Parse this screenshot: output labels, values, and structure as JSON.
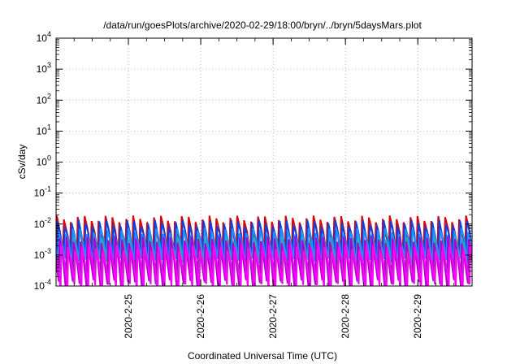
{
  "chart_data": {
    "type": "line",
    "title": "/data/run/goesPlots/archive/2020-02-29/18:00/bryn/../bryn/5daysMars.plot",
    "xlabel": "Coordinated Universal Time (UTC)",
    "ylabel": "cSv/day",
    "yscale": "log",
    "ylim": [
      0.0001,
      10000
    ],
    "y_ticks": [
      {
        "value": 0.0001,
        "base": "10",
        "exp": "-4"
      },
      {
        "value": 0.001,
        "base": "10",
        "exp": "-3"
      },
      {
        "value": 0.01,
        "base": "10",
        "exp": "-2"
      },
      {
        "value": 0.1,
        "base": "10",
        "exp": "-1"
      },
      {
        "value": 1,
        "base": "10",
        "exp": "0"
      },
      {
        "value": 10,
        "base": "10",
        "exp": "1"
      },
      {
        "value": 100,
        "base": "10",
        "exp": "2"
      },
      {
        "value": 1000,
        "base": "10",
        "exp": "3"
      },
      {
        "value": 10000,
        "base": "10",
        "exp": "4"
      }
    ],
    "xlim": [
      "2020-02-24T00:00",
      "2020-02-29T18:00"
    ],
    "x_ticks": [
      {
        "value": "2020-02-25T00:00",
        "label": "2020-2-25"
      },
      {
        "value": "2020-02-26T00:00",
        "label": "2020-2-26"
      },
      {
        "value": "2020-02-27T00:00",
        "label": "2020-2-27"
      },
      {
        "value": "2020-02-28T00:00",
        "label": "2020-2-28"
      },
      {
        "value": "2020-02-29T00:00",
        "label": "2020-2-29"
      }
    ],
    "grid": true,
    "legend": "none",
    "series": [
      {
        "color": "#e00000",
        "peak": 0.015,
        "trough": 0.0012,
        "period_h": 2.3,
        "phase_h": 0.0
      },
      {
        "color": "#1040e0",
        "peak": 0.011,
        "trough": 0.0009,
        "period_h": 2.3,
        "phase_h": 0.3
      },
      {
        "color": "#1e90ff",
        "peak": 0.006,
        "trough": 0.0006,
        "period_h": 2.3,
        "phase_h": 0.7
      },
      {
        "color": "#20b2aa",
        "peak": 0.003,
        "trough": 0.00018,
        "period_h": 2.3,
        "phase_h": 1.0
      },
      {
        "color": "#808080",
        "peak": 0.0022,
        "trough": 0.00015,
        "period_h": 2.3,
        "phase_h": 1.2
      },
      {
        "color": "#b000d0",
        "peak": 0.0032,
        "trough": 0.00012,
        "period_h": 2.3,
        "phase_h": 0.9
      },
      {
        "color": "#ff00ff",
        "peak": 0.0018,
        "trough": 9e-05,
        "period_h": 2.3,
        "phase_h": 1.5
      }
    ]
  }
}
